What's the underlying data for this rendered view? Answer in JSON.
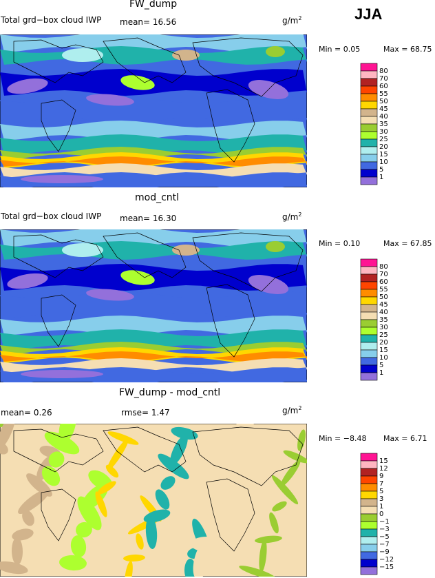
{
  "season": "JJA",
  "panels": [
    {
      "title": "FW_dump",
      "left_label": "Total grd−box cloud IWP",
      "stat1": "mean=   16.56",
      "stat2": "",
      "units": "g/m",
      "units_exp": "2",
      "min_text": "Min =    0.05",
      "max_text": "Max =   68.75",
      "levels": [
        "80",
        "70",
        "60",
        "55",
        "50",
        "45",
        "40",
        "35",
        "30",
        "25",
        "20",
        "15",
        "10",
        "5",
        "1"
      ],
      "colors": [
        "#ff1493",
        "#ffb6c1",
        "#b22222",
        "#ff4500",
        "#ff8c00",
        "#ffd700",
        "#d2b48c",
        "#f5deb3",
        "#9acd32",
        "#adff2f",
        "#20b2aa",
        "#afeeee",
        "#87ceeb",
        "#4169e1",
        "#0000cd",
        "#9370db"
      ]
    },
    {
      "title": "mod_cntl",
      "left_label": "Total grd−box cloud IWP",
      "stat1": "mean=   16.30",
      "stat2": "",
      "units": "g/m",
      "units_exp": "2",
      "min_text": "Min =    0.10",
      "max_text": "Max =   67.85",
      "levels": [
        "80",
        "70",
        "60",
        "55",
        "50",
        "45",
        "40",
        "35",
        "30",
        "25",
        "20",
        "15",
        "10",
        "5",
        "1"
      ],
      "colors": [
        "#ff1493",
        "#ffb6c1",
        "#b22222",
        "#ff4500",
        "#ff8c00",
        "#ffd700",
        "#d2b48c",
        "#f5deb3",
        "#9acd32",
        "#adff2f",
        "#20b2aa",
        "#afeeee",
        "#87ceeb",
        "#4169e1",
        "#0000cd",
        "#9370db"
      ]
    },
    {
      "title": "FW_dump - mod_cntl",
      "left_label": "",
      "stat1": "mean=    0.26",
      "stat2": "rmse=    1.47",
      "units": "g/m",
      "units_exp": "2",
      "min_text": "Min = −8.48",
      "max_text": "Max =    6.71",
      "levels": [
        "15",
        "12",
        "9",
        "7",
        "5",
        "3",
        "1",
        "0",
        "−1",
        "−3",
        "−5",
        "−7",
        "−9",
        "−12",
        "−15"
      ],
      "colors": [
        "#ff1493",
        "#ffb6c1",
        "#b22222",
        "#ff4500",
        "#ff8c00",
        "#ffd700",
        "#d2b48c",
        "#f5deb3",
        "#9acd32",
        "#adff2f",
        "#20b2aa",
        "#afeeee",
        "#87ceeb",
        "#4169e1",
        "#0000cd",
        "#9370db"
      ]
    }
  ]
}
